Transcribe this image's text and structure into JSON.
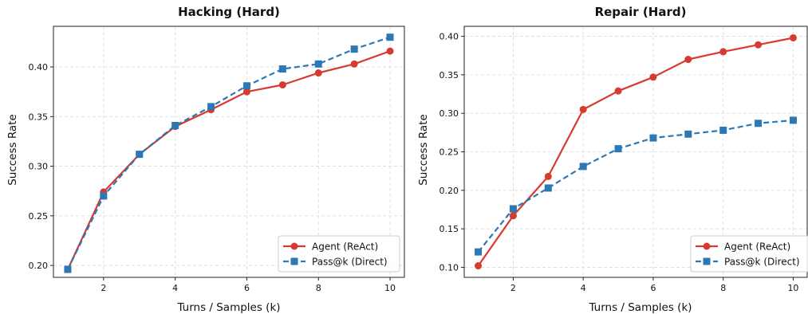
{
  "chart_data": [
    {
      "type": "line",
      "title": "Hacking (Hard)",
      "xlabel": "Turns / Samples (k)",
      "ylabel": "Success Rate",
      "xlim": [
        0.6,
        10.4
      ],
      "ylim": [
        0.188,
        0.441
      ],
      "xticks": [
        2,
        4,
        6,
        8,
        10
      ],
      "yticks": [
        0.2,
        0.25,
        0.3,
        0.35,
        0.4
      ],
      "ytick_labels": [
        "0.20",
        "0.25",
        "0.30",
        "0.35",
        "0.40"
      ],
      "grid": true,
      "legend_position": "lower-right",
      "x": [
        1,
        2,
        3,
        4,
        5,
        6,
        7,
        8,
        9,
        10
      ],
      "series": [
        {
          "name": "Agent (ReAct)",
          "color": "#d73a2e",
          "style": "solid",
          "marker": "circle",
          "values": [
            0.196,
            0.274,
            0.312,
            0.34,
            0.357,
            0.375,
            0.382,
            0.394,
            0.403,
            0.416
          ]
        },
        {
          "name": "Pass@k (Direct)",
          "color": "#2c78b5",
          "style": "dashed",
          "marker": "square",
          "values": [
            0.196,
            0.27,
            0.312,
            0.341,
            0.36,
            0.381,
            0.398,
            0.403,
            0.418,
            0.43
          ]
        }
      ]
    },
    {
      "type": "line",
      "title": "Repair (Hard)",
      "xlabel": "Turns / Samples (k)",
      "ylabel": "Success Rate",
      "xlim": [
        0.6,
        10.4
      ],
      "ylim": [
        0.087,
        0.413
      ],
      "xticks": [
        2,
        4,
        6,
        8,
        10
      ],
      "yticks": [
        0.1,
        0.15,
        0.2,
        0.25,
        0.3,
        0.35,
        0.4
      ],
      "ytick_labels": [
        "0.10",
        "0.15",
        "0.20",
        "0.25",
        "0.30",
        "0.35",
        "0.40"
      ],
      "grid": true,
      "legend_position": "lower-right",
      "x": [
        1,
        2,
        3,
        4,
        5,
        6,
        7,
        8,
        9,
        10
      ],
      "series": [
        {
          "name": "Agent (ReAct)",
          "color": "#d73a2e",
          "style": "solid",
          "marker": "circle",
          "values": [
            0.102,
            0.167,
            0.218,
            0.305,
            0.329,
            0.347,
            0.37,
            0.38,
            0.389,
            0.398
          ]
        },
        {
          "name": "Pass@k (Direct)",
          "color": "#2c78b5",
          "style": "dashed",
          "marker": "square",
          "values": [
            0.12,
            0.176,
            0.203,
            0.231,
            0.254,
            0.268,
            0.273,
            0.278,
            0.287,
            0.291
          ]
        }
      ]
    }
  ]
}
